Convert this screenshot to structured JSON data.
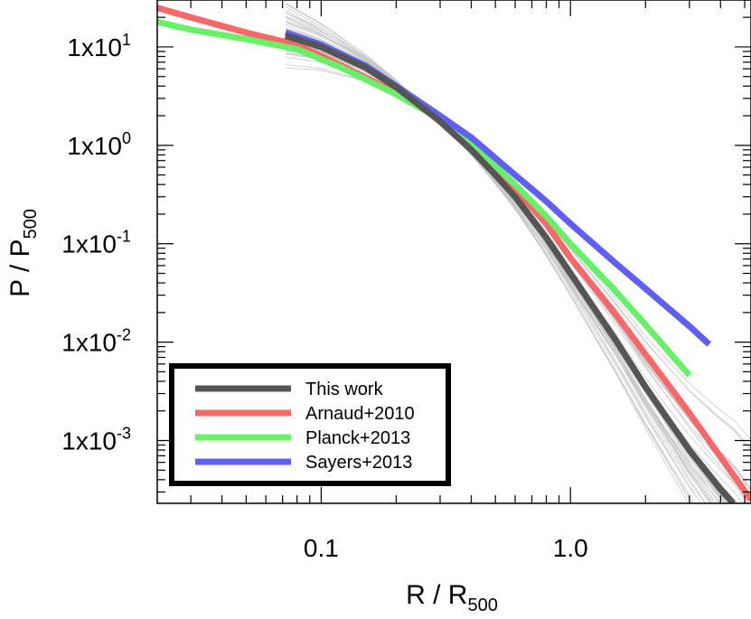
{
  "chart_data": {
    "type": "line",
    "title": "",
    "xlabel": {
      "main": "R / R",
      "sub": "500"
    },
    "ylabel": {
      "main": "P / P",
      "sub": "500"
    },
    "x_scale": "log",
    "y_scale": "log",
    "xlim": [
      0.022,
      5.3
    ],
    "ylim": [
      0.00023,
      30
    ],
    "grid": false,
    "legend_position": "bottom-left",
    "x_ticks": [
      {
        "value": 0.1,
        "label": "0.1"
      },
      {
        "value": 1.0,
        "label": "1.0"
      }
    ],
    "y_ticks": [
      {
        "value": 10,
        "base": "1x10",
        "exp": "1"
      },
      {
        "value": 1,
        "base": "1x10",
        "exp": "0"
      },
      {
        "value": 0.1,
        "base": "1x10",
        "exp": "-1"
      },
      {
        "value": 0.01,
        "base": "1x10",
        "exp": "-2"
      },
      {
        "value": 0.001,
        "base": "1x10",
        "exp": "-3"
      }
    ],
    "series": [
      {
        "name": "Arnaud+2010",
        "color": "#f86868",
        "x": [
          0.022,
          0.03,
          0.05,
          0.08,
          0.12,
          0.2,
          0.3,
          0.4,
          0.6,
          0.8,
          1.0,
          1.5,
          2.0,
          3.0,
          4.0,
          5.3
        ],
        "y": [
          25,
          20,
          14,
          10.5,
          6.5,
          3.4,
          1.9,
          1.05,
          0.36,
          0.16,
          0.072,
          0.02,
          0.0075,
          0.0019,
          0.00068,
          0.00025
        ]
      },
      {
        "name": "Planck+2013",
        "color": "#68f068",
        "x": [
          0.022,
          0.03,
          0.05,
          0.08,
          0.12,
          0.2,
          0.3,
          0.4,
          0.6,
          0.8,
          1.0,
          1.5,
          2.0,
          3.0
        ],
        "y": [
          18,
          15,
          12,
          9.5,
          6.2,
          3.3,
          1.85,
          1.05,
          0.4,
          0.19,
          0.1,
          0.034,
          0.015,
          0.0046
        ]
      },
      {
        "name": "Sayers+2013",
        "color": "#5f5ff5",
        "x": [
          0.072,
          0.1,
          0.15,
          0.2,
          0.3,
          0.4,
          0.6,
          0.8,
          1.0,
          1.5,
          2.0,
          3.0,
          3.6
        ],
        "y": [
          14,
          10.5,
          6.5,
          4.0,
          2.0,
          1.2,
          0.5,
          0.27,
          0.16,
          0.065,
          0.035,
          0.0145,
          0.0095
        ]
      },
      {
        "name": "This work",
        "color": "#555555",
        "x": [
          0.072,
          0.1,
          0.15,
          0.2,
          0.3,
          0.4,
          0.5,
          0.6,
          0.8,
          1.0,
          1.5,
          2.0,
          3.0,
          4.0,
          4.5
        ],
        "y": [
          13,
          10.0,
          6.2,
          3.9,
          1.75,
          0.9,
          0.5,
          0.3,
          0.115,
          0.05,
          0.011,
          0.0035,
          0.0008,
          0.00032,
          0.00023
        ]
      }
    ],
    "legend": [
      "This work",
      "Arnaud+2010",
      "Planck+2013",
      "Sayers+2013"
    ]
  }
}
